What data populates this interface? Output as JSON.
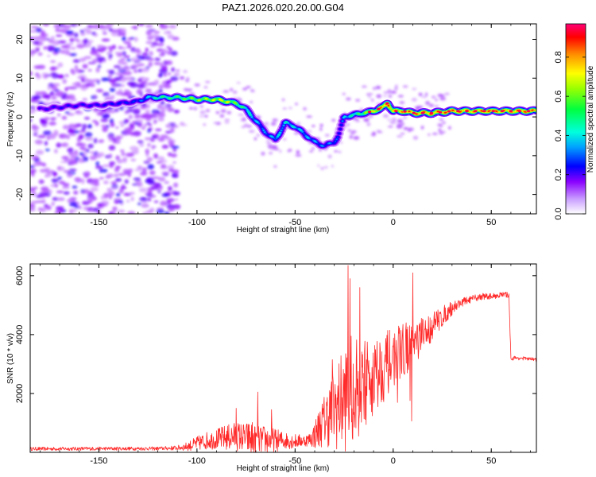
{
  "title": "PAZ1.2026.020.20.00.G04",
  "colors": {
    "snr_line": "#ff2a2a",
    "axis": "#000000",
    "background": "#ffffff"
  },
  "chart_data": [
    {
      "type": "heatmap",
      "name": "spectrogram",
      "xlabel": "Height of straight line (km)",
      "ylabel": "Frequency (Hz)",
      "xlim": [
        -185,
        73
      ],
      "ylim": [
        -25,
        24
      ],
      "xticks": [
        -150,
        -100,
        -50,
        0,
        50
      ],
      "yticks": [
        -20,
        -10,
        0,
        10,
        20
      ],
      "tick_labels_x": [
        "-150",
        "-100",
        "-50",
        "0",
        "50"
      ],
      "tick_labels_y": [
        "-20",
        "-10",
        "0",
        "10",
        "20"
      ],
      "colorbar": {
        "label": "Normalized spectral amplitude",
        "range": [
          0,
          0.97
        ],
        "ticks": [
          0.0,
          0.2,
          0.4,
          0.6,
          0.8
        ],
        "tick_labels": [
          "0.0",
          "0.2",
          "0.4",
          "0.6",
          "0.8"
        ],
        "colormap": [
          "#ffffff",
          "#8a00ff",
          "#0000ff",
          "#00d4ff",
          "#00ff7f",
          "#7fff00",
          "#ffff00",
          "#ff7f00",
          "#ff0000",
          "#ff0077"
        ]
      },
      "ridge": {
        "x": [
          -180,
          -170,
          -160,
          -150,
          -140,
          -130,
          -125,
          -120,
          -110,
          -100,
          -90,
          -85,
          -80,
          -75,
          -70,
          -65,
          -60,
          -55,
          -50,
          -45,
          -40,
          -35,
          -30,
          -28,
          -25,
          -20,
          -15,
          -10,
          -5,
          -3,
          0,
          5,
          10,
          15,
          20,
          30,
          40,
          50,
          60,
          73
        ],
        "frequency": [
          2,
          2.5,
          3,
          3,
          3.5,
          4,
          5,
          5,
          5,
          4.5,
          4.5,
          4,
          3.5,
          2,
          -1,
          -4,
          -6,
          -1.5,
          -2.5,
          -4.5,
          -6.5,
          -7.5,
          -6.5,
          -5,
          0,
          0.5,
          1,
          1.5,
          2.5,
          3.5,
          1.5,
          1.5,
          1,
          1,
          1,
          1.5,
          1.5,
          1.5,
          1.5,
          1.5
        ],
        "amplitude": [
          0.18,
          0.2,
          0.2,
          0.2,
          0.22,
          0.25,
          0.35,
          0.45,
          0.5,
          0.6,
          0.65,
          0.7,
          0.55,
          0.45,
          0.35,
          0.3,
          0.35,
          0.4,
          0.38,
          0.35,
          0.32,
          0.3,
          0.3,
          0.25,
          0.35,
          0.45,
          0.55,
          0.7,
          0.85,
          0.9,
          0.75,
          0.8,
          0.85,
          0.85,
          0.85,
          0.85,
          0.85,
          0.85,
          0.85,
          0.85
        ]
      },
      "noise_region_x": [
        -185,
        -110
      ]
    },
    {
      "type": "line",
      "name": "snr",
      "xlabel": "Height of straight line (km)",
      "ylabel": "SNR (10 * v/v)",
      "xlim": [
        -185,
        73
      ],
      "ylim": [
        0,
        6400
      ],
      "xticks": [
        -150,
        -100,
        -50,
        0,
        50
      ],
      "yticks": [
        2000,
        4000,
        6000
      ],
      "tick_labels_x": [
        "-150",
        "-100",
        "-50",
        "0",
        "50"
      ],
      "tick_labels_y": [
        "2000",
        "4000",
        "6000"
      ],
      "envelope": {
        "x": [
          -185,
          -120,
          -110,
          -105,
          -100,
          -95,
          -90,
          -85,
          -80,
          -75,
          -72,
          -70,
          -65,
          -60,
          -55,
          -50,
          -45,
          -42,
          -40,
          -35,
          -30,
          -25,
          -22,
          -20,
          -15,
          -10,
          -5,
          0,
          5,
          10,
          15,
          20,
          25,
          30,
          35,
          40,
          45,
          50,
          55,
          59,
          60,
          65,
          73
        ],
        "snr": [
          120,
          130,
          150,
          200,
          300,
          400,
          450,
          500,
          550,
          500,
          450,
          420,
          430,
          410,
          400,
          380,
          400,
          450,
          600,
          1100,
          1500,
          1800,
          2000,
          2100,
          2300,
          2600,
          2900,
          3200,
          3500,
          3700,
          3900,
          4300,
          4600,
          4900,
          5100,
          5200,
          5300,
          5300,
          5350,
          5350,
          3200,
          3200,
          3150
        ],
        "jitter": [
          60,
          60,
          80,
          150,
          250,
          300,
          350,
          450,
          500,
          500,
          700,
          450,
          500,
          400,
          300,
          250,
          200,
          250,
          500,
          900,
          1400,
          1800,
          2000,
          1800,
          1500,
          1400,
          1200,
          1000,
          900,
          800,
          700,
          500,
          350,
          250,
          150,
          120,
          120,
          100,
          100,
          100,
          80,
          60,
          60
        ]
      },
      "spikes": [
        {
          "x": -80,
          "snr": 1500
        },
        {
          "x": -69,
          "snr": 2050
        },
        {
          "x": -62,
          "snr": 1450
        },
        {
          "x": -31,
          "snr": 3150
        },
        {
          "x": -23,
          "snr": 6350
        },
        {
          "x": -22,
          "snr": 5900
        },
        {
          "x": -17,
          "snr": 5600
        },
        {
          "x": 10,
          "snr": 6100
        }
      ]
    }
  ]
}
